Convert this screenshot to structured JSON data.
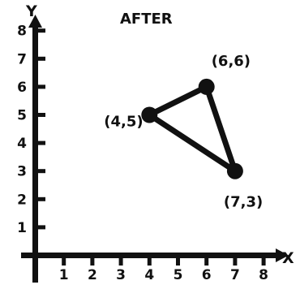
{
  "title": "AFTER",
  "axes": {
    "x_label": "X",
    "y_label": "Y",
    "x_ticks": [
      "1",
      "2",
      "3",
      "4",
      "5",
      "6",
      "7",
      "8"
    ],
    "y_ticks": [
      "1",
      "2",
      "3",
      "4",
      "5",
      "6",
      "7",
      "8"
    ],
    "xlim": [
      0,
      8
    ],
    "ylim": [
      0,
      8
    ]
  },
  "points": [
    {
      "x": 4,
      "y": 5,
      "label": "(4,5)"
    },
    {
      "x": 6,
      "y": 6,
      "label": "(6,6)"
    },
    {
      "x": 7,
      "y": 3,
      "label": "(7,3)"
    }
  ],
  "colors": {
    "ink": "#111111",
    "background": "#ffffff"
  }
}
